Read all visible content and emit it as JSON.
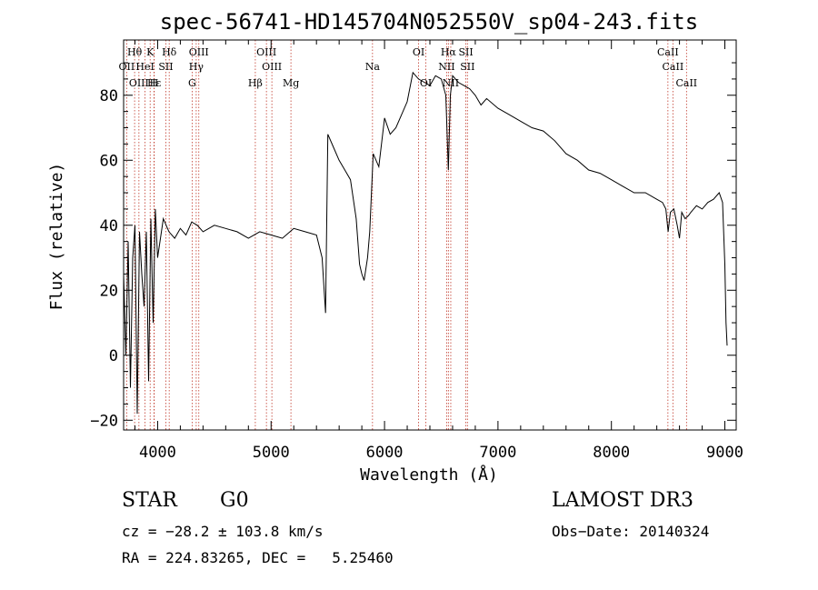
{
  "chart_data": {
    "type": "line",
    "title": "spec-56741-HD145704N052550V_sp04-243.fits",
    "xlabel": "Wavelength (Å)",
    "ylabel": "Flux (relative)",
    "xlim": [
      3700,
      9100
    ],
    "ylim": [
      -23,
      97
    ],
    "xticks": [
      4000,
      5000,
      6000,
      7000,
      8000,
      9000
    ],
    "yticks": [
      -20,
      0,
      20,
      40,
      60,
      80
    ],
    "grid": false,
    "series": [
      {
        "name": "flux",
        "x": [
          3700,
          3720,
          3740,
          3760,
          3780,
          3800,
          3820,
          3840,
          3860,
          3880,
          3900,
          3920,
          3940,
          3960,
          3980,
          4000,
          4050,
          4100,
          4150,
          4200,
          4250,
          4300,
          4350,
          4400,
          4500,
          4600,
          4700,
          4800,
          4900,
          5000,
          5100,
          5200,
          5300,
          5400,
          5450,
          5480,
          5500,
          5550,
          5600,
          5650,
          5700,
          5750,
          5780,
          5800,
          5820,
          5850,
          5870,
          5900,
          5950,
          6000,
          6050,
          6100,
          6150,
          6200,
          6250,
          6300,
          6350,
          6400,
          6450,
          6500,
          6540,
          6563,
          6580,
          6600,
          6650,
          6700,
          6750,
          6800,
          6850,
          6900,
          7000,
          7100,
          7200,
          7300,
          7400,
          7500,
          7600,
          7700,
          7800,
          7900,
          8000,
          8100,
          8200,
          8300,
          8400,
          8450,
          8480,
          8500,
          8520,
          8550,
          8580,
          8600,
          8620,
          8650,
          8680,
          8700,
          8750,
          8800,
          8850,
          8900,
          8950,
          8980,
          9000,
          9010,
          9020
        ],
        "values": [
          25,
          0,
          35,
          -10,
          30,
          40,
          -18,
          38,
          25,
          15,
          38,
          -8,
          42,
          10,
          45,
          30,
          42,
          38,
          36,
          39,
          37,
          41,
          40,
          38,
          40,
          39,
          38,
          36,
          38,
          37,
          36,
          39,
          38,
          37,
          30,
          13,
          68,
          64,
          60,
          57,
          54,
          42,
          28,
          25,
          23,
          30,
          38,
          62,
          58,
          73,
          68,
          70,
          74,
          78,
          87,
          85,
          84,
          83,
          86,
          85,
          80,
          57,
          80,
          86,
          84,
          83,
          82,
          80,
          77,
          79,
          76,
          74,
          72,
          70,
          69,
          66,
          62,
          60,
          57,
          56,
          54,
          52,
          50,
          50,
          48,
          47,
          45,
          38,
          44,
          45,
          40,
          36,
          44,
          42,
          43,
          44,
          46,
          45,
          47,
          48,
          50,
          47,
          28,
          10,
          3
        ]
      }
    ],
    "lines": {
      "OII": {
        "wl": 3727,
        "label": "OII"
      },
      "Hth": {
        "wl": 3797,
        "label": "Hθ"
      },
      "OIIIa": {
        "wl": 3835,
        "label": "OIII"
      },
      "HeI": {
        "wl": 3889,
        "label": "HeI"
      },
      "K": {
        "wl": 3934,
        "label": "K"
      },
      "Hg_eps": {
        "wl": 3970,
        "label": "Hε"
      },
      "H": {
        "wl": 3968,
        "label": "H"
      },
      "SII_a": {
        "wl": 4072,
        "label": "SII"
      },
      "Hdel": {
        "wl": 4102,
        "label": "Hδ"
      },
      "G": {
        "wl": 4304,
        "label": "G"
      },
      "Hgam": {
        "wl": 4340,
        "label": "Hγ"
      },
      "OIIIb": {
        "wl": 4363,
        "label": "OIII"
      },
      "Hbeta": {
        "wl": 4861,
        "label": "Hβ"
      },
      "OIIIc": {
        "wl": 4959,
        "label": "OIII"
      },
      "OIIId": {
        "wl": 5007,
        "label": "OIII"
      },
      "Mg": {
        "wl": 5175,
        "label": "Mg"
      },
      "Na": {
        "wl": 5894,
        "label": "Na"
      },
      "OI_a": {
        "wl": 6300,
        "label": "OI"
      },
      "OI_b": {
        "wl": 6364,
        "label": "OI"
      },
      "NII_a": {
        "wl": 6548,
        "label": "NII"
      },
      "Halpha": {
        "wl": 6563,
        "label": "Hα"
      },
      "NII_b": {
        "wl": 6584,
        "label": "NII"
      },
      "SII_b": {
        "wl": 6717,
        "label": "SII"
      },
      "SII_c": {
        "wl": 6731,
        "label": "SII"
      },
      "CaII_a": {
        "wl": 8498,
        "label": "CaII"
      },
      "CaII_b": {
        "wl": 8542,
        "label": "CaII"
      },
      "CaII_c": {
        "wl": 8662,
        "label": "CaII"
      }
    }
  },
  "info": {
    "class": "STAR",
    "subclass": "G0",
    "survey": "LAMOST DR3",
    "cz": "cz = −28.2 ± 103.8 km/s",
    "obsdate": "Obs−Date: 20140324",
    "radec": "RA = 224.83265, DEC =   5.25460"
  },
  "colors": {
    "line_marker": "#c0392b",
    "spectrum": "#000000"
  }
}
